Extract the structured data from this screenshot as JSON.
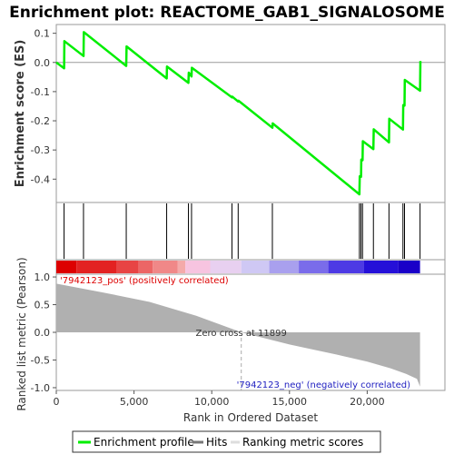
{
  "chart_data": {
    "type": "line",
    "title": "Enrichment plot: REACTOME_GAB1_SIGNALOSOME",
    "es_panel": {
      "ylabel": "Enrichment score (ES)",
      "ylim": [
        -0.48,
        0.13
      ],
      "yticks": [
        0.1,
        0.0,
        -0.1,
        -0.2,
        -0.3,
        -0.4
      ],
      "ytick_labels": [
        "0.1",
        "0.0",
        "-0.1",
        "-0.2",
        "-0.3",
        "-0.4"
      ],
      "series": [
        {
          "name": "Enrichment profile",
          "color": "#00ee00",
          "x": [
            0,
            500,
            520,
            1750,
            1770,
            4500,
            4520,
            7100,
            7120,
            8500,
            8520,
            8700,
            8720,
            11300,
            11320,
            11700,
            11720,
            13900,
            13920,
            19500,
            19520,
            19600,
            19620,
            19700,
            19720,
            20400,
            20420,
            21400,
            21420,
            22300,
            22320,
            22400,
            22420,
            23400,
            23420
          ],
          "y": [
            0.0,
            -0.02,
            0.073,
            0.022,
            0.104,
            -0.012,
            0.055,
            -0.055,
            -0.014,
            -0.07,
            -0.035,
            -0.048,
            -0.018,
            -0.12,
            -0.117,
            -0.134,
            -0.131,
            -0.224,
            -0.209,
            -0.452,
            -0.39,
            -0.392,
            -0.333,
            -0.335,
            -0.27,
            -0.297,
            -0.229,
            -0.274,
            -0.193,
            -0.23,
            -0.146,
            -0.148,
            -0.06,
            -0.097,
            0.005
          ]
        }
      ],
      "hits": [
        500,
        1750,
        4500,
        7100,
        8500,
        8700,
        11300,
        11700,
        13900,
        19500,
        19600,
        19700,
        20400,
        21400,
        22300,
        22400,
        23400
      ]
    },
    "metric_panel": {
      "ylabel": "Ranked list metric (Pearson)",
      "ylim": [
        -1.05,
        1.05
      ],
      "yticks": [
        1.0,
        0.5,
        0.0,
        -0.5,
        -1.0
      ],
      "ytick_labels": [
        "1.0",
        "0.5",
        "0.0",
        "-0.5",
        "-1.0"
      ],
      "fill_color": "#b0b0b0",
      "x": [
        0,
        3000,
        6000,
        9000,
        11899,
        15000,
        18000,
        20000,
        21500,
        22500,
        23200,
        23400
      ],
      "y": [
        0.88,
        0.72,
        0.55,
        0.3,
        0.0,
        -0.22,
        -0.4,
        -0.53,
        -0.65,
        -0.75,
        -0.84,
        -0.98
      ],
      "pos_label": "'7942123_pos' (positively correlated)",
      "neg_label": "'7942123_neg' (negatively correlated)",
      "zero_cross_label": "Zero cross at 11899",
      "zero_cross_x": 11899
    },
    "xaxis": {
      "label": "Rank in Ordered Dataset",
      "xlim": [
        0,
        25000
      ],
      "xticks": [
        0,
        5000,
        10000,
        15000,
        20000
      ],
      "xtick_labels": [
        "0",
        "5,000",
        "10,000",
        "15,000",
        "20,000"
      ],
      "data_max": 23400
    },
    "heat_bar": {
      "colors": [
        "#dd0000",
        "#e32222",
        "#e84444",
        "#ec6666",
        "#f08888",
        "#f4aaaa",
        "#f7c4e0",
        "#e8d0f0",
        "#cfc8f4",
        "#a9a0ee",
        "#7a6cea",
        "#4d3ae4",
        "#2510d8",
        "#1a00c8"
      ],
      "bounds": [
        0,
        1300,
        3900,
        5300,
        6200,
        7800,
        8300,
        9900,
        11900,
        13700,
        15600,
        17500,
        19800,
        22000,
        23400
      ]
    },
    "legend": {
      "items": [
        {
          "label": "Enrichment profile",
          "color": "#00ee00"
        },
        {
          "label": "Hits",
          "color": "#000000"
        },
        {
          "label": "Ranking metric scores",
          "color": "#dddddd"
        }
      ]
    }
  }
}
